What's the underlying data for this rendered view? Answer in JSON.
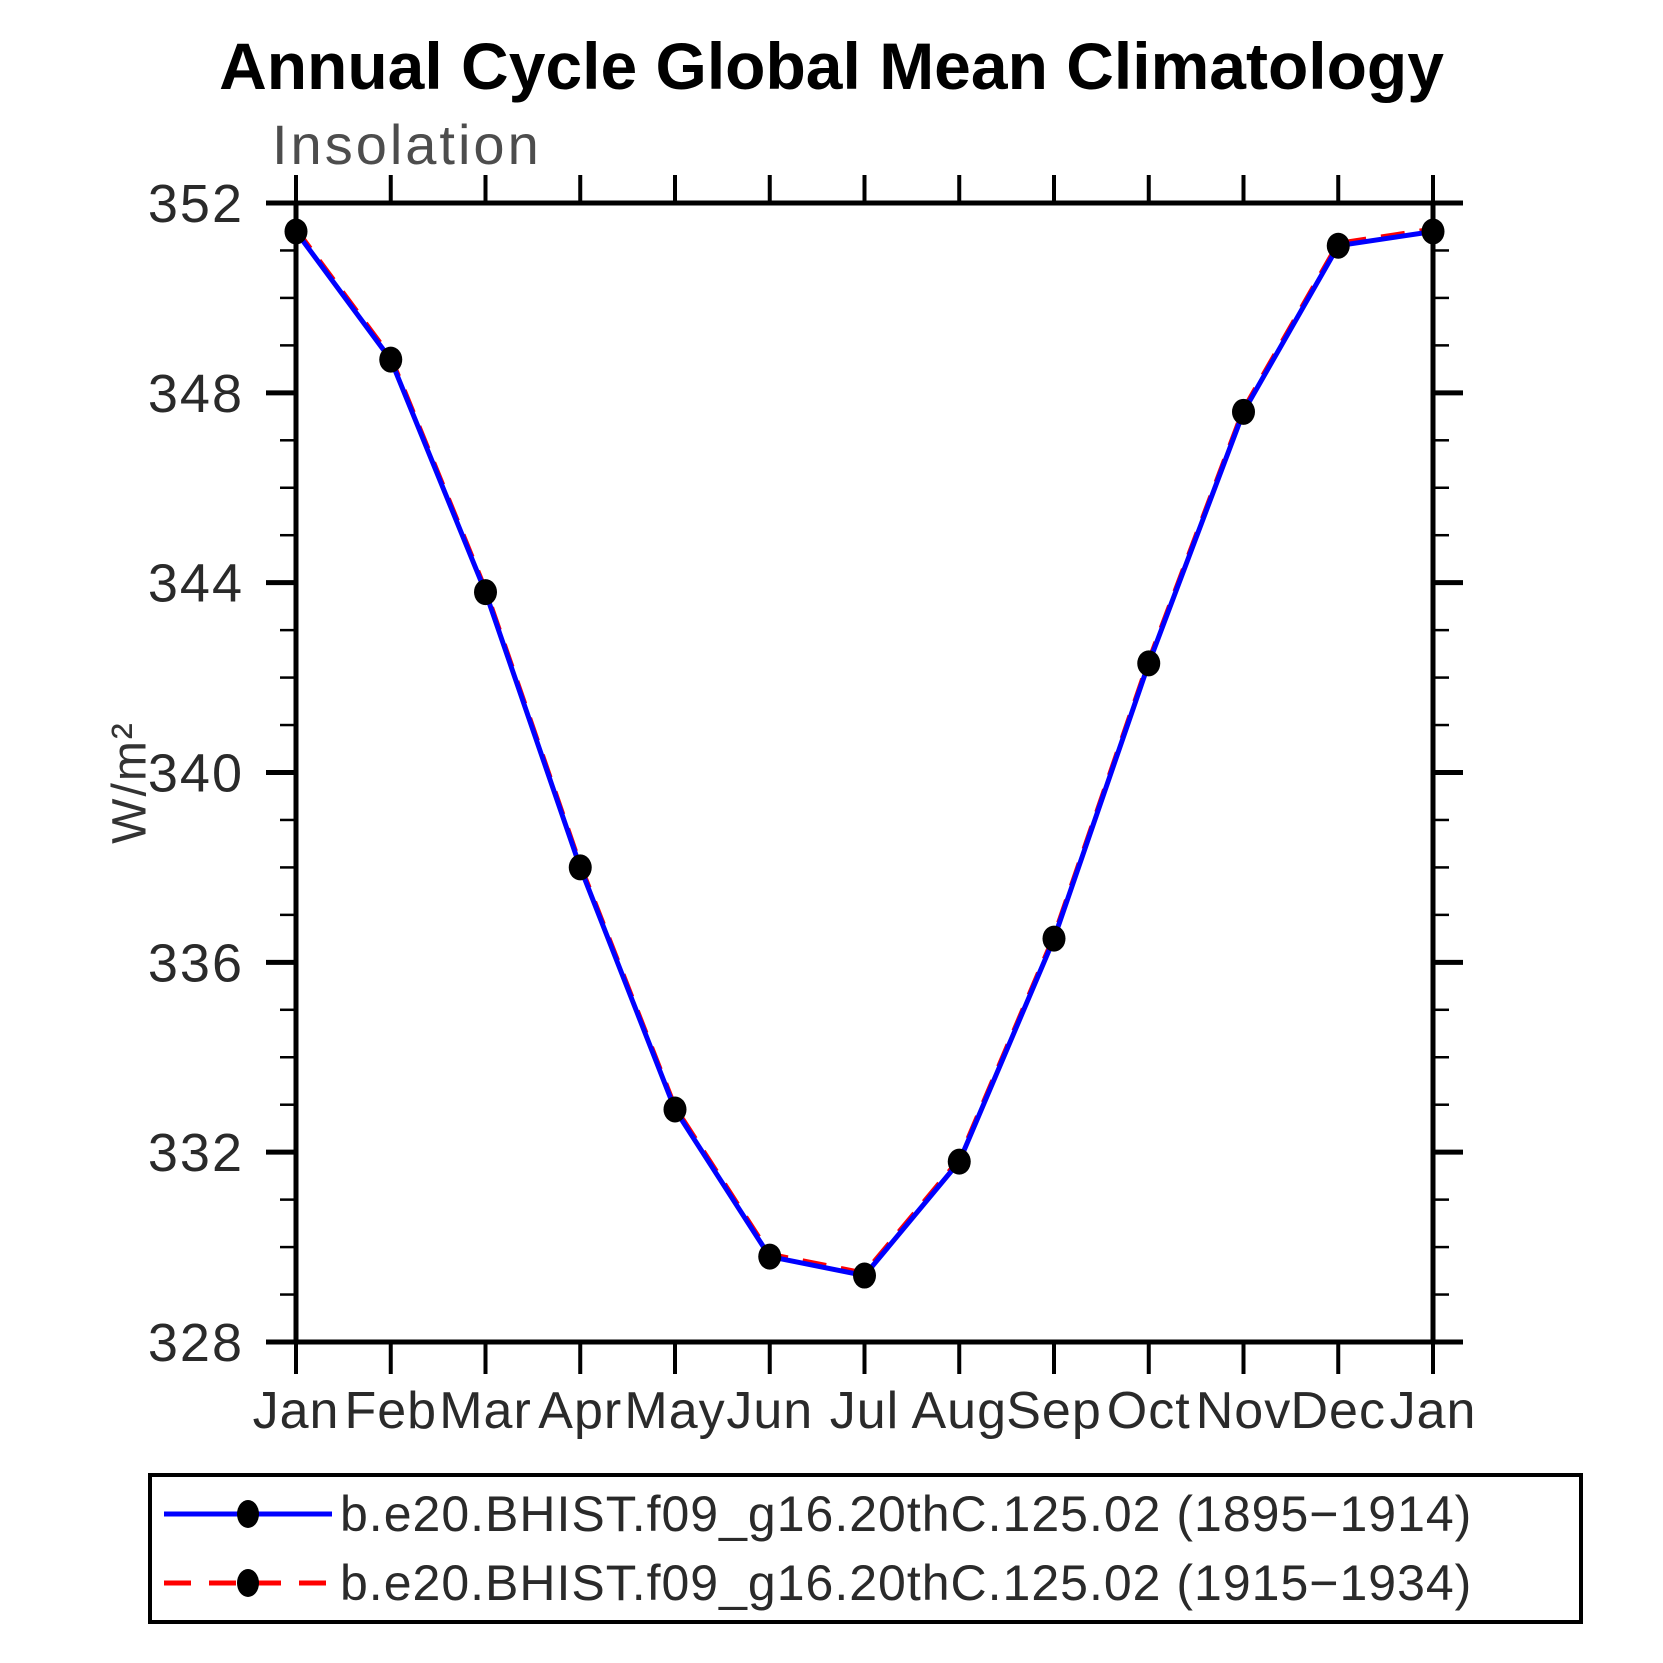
{
  "page": {
    "title": "Annual Cycle Global Mean Climatology",
    "subtitle": "Insolation",
    "y_axis_title": "W/m²"
  },
  "chart_data": {
    "type": "line",
    "title": "Annual Cycle Global Mean Climatology",
    "subtitle": "Insolation",
    "ylabel": "W/m²",
    "xlabel": "",
    "x_categories": [
      "Jan",
      "Feb",
      "Mar",
      "Apr",
      "May",
      "Jun",
      "Jul",
      "Aug",
      "Sep",
      "Oct",
      "Nov",
      "Dec",
      "Jan"
    ],
    "ylim": [
      328,
      352
    ],
    "y_major_tick_step": 4,
    "y_minor_tick_step": 1,
    "y_major_ticks": [
      328,
      332,
      336,
      340,
      344,
      348,
      352
    ],
    "grid": false,
    "legend_position": "bottom",
    "series": [
      {
        "name": "b.e20.BHIST.f09_g16.20thC.125.02 (1895−1914)",
        "color": "#0000ff",
        "line_style": "solid",
        "marker": "filled-circle",
        "marker_color": "#000000",
        "values": [
          351.4,
          348.7,
          343.8,
          338.0,
          332.9,
          329.8,
          329.4,
          331.8,
          336.5,
          342.3,
          347.6,
          351.1,
          351.4
        ]
      },
      {
        "name": "b.e20.BHIST.f09_g16.20thC.125.02 (1915−1934)",
        "color": "#ff0000",
        "line_style": "dashed",
        "marker": "filled-circle",
        "marker_color": "#000000",
        "values": [
          351.45,
          348.75,
          343.85,
          338.05,
          332.95,
          329.85,
          329.45,
          331.85,
          336.55,
          342.35,
          347.65,
          351.15,
          351.45
        ]
      }
    ]
  }
}
